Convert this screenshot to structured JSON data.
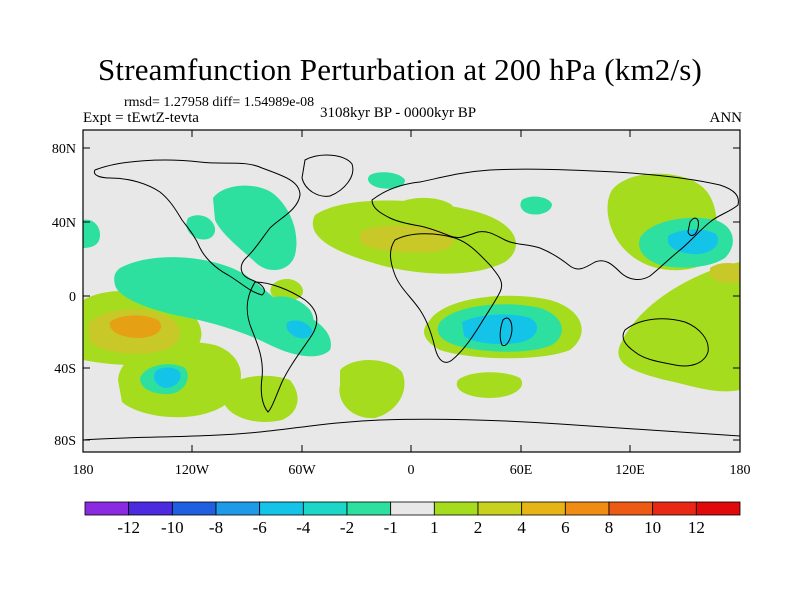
{
  "title": "Streamfunction Perturbation at 200 hPa (km2/s)",
  "stats": "rmsd= 1.27958 diff= 1.54989e-08",
  "experiment": "Expt = tEwtZ-tevta",
  "period": "3108kyr BP - 0000kyr BP",
  "season": "ANN",
  "y_axis_labels": [
    "80N",
    "40N",
    "0",
    "40S",
    "80S"
  ],
  "x_axis_labels": [
    "180",
    "120W",
    "60W",
    "0",
    "60E",
    "120E",
    "180"
  ],
  "colorbar": {
    "labels": [
      "-12",
      "-10",
      "-8",
      "-6",
      "-4",
      "-2",
      "-1",
      "1",
      "2",
      "4",
      "6",
      "8",
      "10",
      "12"
    ],
    "colors": [
      "#8a2be2",
      "#4b2ae0",
      "#1f5fe0",
      "#1e9be8",
      "#14c3e8",
      "#1cd6c8",
      "#2ee0a0",
      "#e8e8e8",
      "#a6dc1e",
      "#c8d21e",
      "#e6b414",
      "#f08c14",
      "#ec5a14",
      "#e82814",
      "#e00a0a"
    ]
  },
  "colors": {
    "background_field": "#e8e8e8",
    "green": "#a6dc1e",
    "yellow": "#c8c828",
    "orange": "#e6a014",
    "teal": "#2ee0a0",
    "cyan": "#14c3e8"
  }
}
